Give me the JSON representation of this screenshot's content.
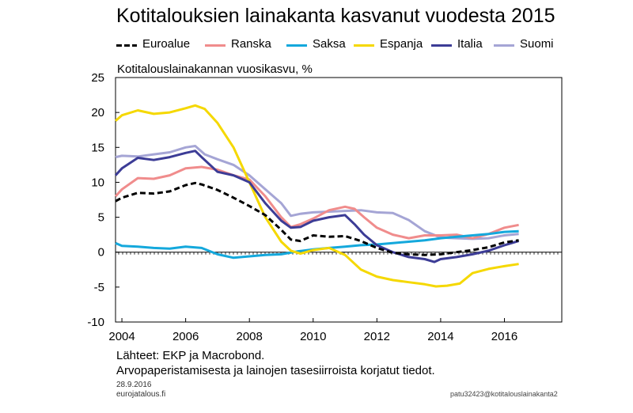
{
  "chart_data": {
    "type": "line",
    "title": "Kotitalouksien lainakanta kasvanut vuodesta 2015",
    "ylabel": "Kotitalouslainakannan vuosikasvu, %",
    "xlabel": "",
    "xlim": [
      2003.8,
      2017.8
    ],
    "ylim": [
      -10,
      25
    ],
    "x_ticks": [
      2004,
      2006,
      2008,
      2010,
      2012,
      2014,
      2016
    ],
    "y_ticks": [
      25,
      20,
      15,
      10,
      5,
      0,
      -5,
      -10
    ],
    "grid": false,
    "series": [
      {
        "name": "Euroalue",
        "color": "#000000",
        "dash": true,
        "x": [
          2003.8,
          2004.0,
          2004.5,
          2005.0,
          2005.5,
          2006.0,
          2006.3,
          2006.5,
          2007.0,
          2007.5,
          2008.0,
          2008.5,
          2009.0,
          2009.3,
          2009.6,
          2010.0,
          2010.5,
          2011.0,
          2011.5,
          2012.0,
          2012.5,
          2013.0,
          2013.5,
          2014.0,
          2014.5,
          2015.0,
          2015.5,
          2016.0,
          2016.45
        ],
        "values": [
          7.3,
          7.8,
          8.5,
          8.4,
          8.7,
          9.6,
          9.9,
          9.7,
          8.9,
          7.8,
          6.6,
          5.3,
          3.2,
          1.8,
          1.6,
          2.4,
          2.2,
          2.3,
          1.6,
          0.6,
          -0.1,
          -0.3,
          -0.4,
          -0.3,
          0.0,
          0.3,
          0.7,
          1.4,
          1.7
        ]
      },
      {
        "name": "Ranska",
        "color": "#F08C8C",
        "dash": false,
        "x": [
          2003.8,
          2004.0,
          2004.5,
          2005.0,
          2005.5,
          2006.0,
          2006.5,
          2007.0,
          2007.5,
          2008.0,
          2008.5,
          2009.0,
          2009.3,
          2009.6,
          2010.0,
          2010.5,
          2011.0,
          2011.3,
          2011.6,
          2012.0,
          2012.5,
          2013.0,
          2013.5,
          2014.0,
          2014.5,
          2015.0,
          2015.5,
          2016.0,
          2016.45
        ],
        "values": [
          8.0,
          9.0,
          10.6,
          10.5,
          11.0,
          12.0,
          12.2,
          11.8,
          11.0,
          10.4,
          8.0,
          5.0,
          3.6,
          4.0,
          4.8,
          6.0,
          6.5,
          6.2,
          5.0,
          3.5,
          2.5,
          2.0,
          2.4,
          2.4,
          2.5,
          2.0,
          2.6,
          3.5,
          3.9
        ]
      },
      {
        "name": "Saksa",
        "color": "#14A8DC",
        "dash": false,
        "x": [
          2003.8,
          2004.0,
          2004.5,
          2005.0,
          2005.5,
          2006.0,
          2006.5,
          2007.0,
          2007.5,
          2008.0,
          2008.5,
          2009.0,
          2009.5,
          2010.0,
          2010.5,
          2011.0,
          2011.5,
          2012.0,
          2012.5,
          2013.0,
          2013.5,
          2014.0,
          2014.5,
          2015.0,
          2015.5,
          2016.0,
          2016.45
        ],
        "values": [
          1.3,
          0.9,
          0.8,
          0.6,
          0.5,
          0.8,
          0.6,
          -0.3,
          -0.8,
          -0.6,
          -0.4,
          -0.3,
          0.1,
          0.4,
          0.6,
          0.8,
          1.0,
          1.1,
          1.3,
          1.5,
          1.7,
          2.0,
          2.2,
          2.4,
          2.6,
          2.9,
          3.0
        ]
      },
      {
        "name": "Espanja",
        "color": "#F5D800",
        "dash": false,
        "x": [
          2003.8,
          2004.0,
          2004.5,
          2005.0,
          2005.5,
          2006.0,
          2006.3,
          2006.6,
          2007.0,
          2007.5,
          2008.0,
          2008.5,
          2009.0,
          2009.3,
          2009.6,
          2010.0,
          2010.5,
          2011.0,
          2011.5,
          2012.0,
          2012.5,
          2013.0,
          2013.5,
          2013.85,
          2014.2,
          2014.6,
          2015.0,
          2015.5,
          2016.0,
          2016.45
        ],
        "values": [
          18.8,
          19.6,
          20.3,
          19.8,
          20.0,
          20.6,
          21.0,
          20.5,
          18.5,
          15.0,
          10.0,
          5.0,
          1.5,
          0.2,
          -0.2,
          0.3,
          0.6,
          -0.4,
          -2.5,
          -3.5,
          -4.0,
          -4.3,
          -4.6,
          -4.9,
          -4.8,
          -4.5,
          -3.0,
          -2.4,
          -2.0,
          -1.7
        ]
      },
      {
        "name": "Italia",
        "color": "#3C3C96",
        "dash": false,
        "x": [
          2003.8,
          2004.0,
          2004.5,
          2005.0,
          2005.5,
          2006.0,
          2006.3,
          2006.5,
          2007.0,
          2007.5,
          2008.0,
          2008.5,
          2009.0,
          2009.3,
          2009.6,
          2010.0,
          2010.5,
          2011.0,
          2011.3,
          2011.6,
          2012.0,
          2012.5,
          2013.0,
          2013.5,
          2013.8,
          2014.0,
          2014.5,
          2015.0,
          2015.5,
          2016.0,
          2016.45
        ],
        "values": [
          11.0,
          12.0,
          13.5,
          13.2,
          13.6,
          14.2,
          14.5,
          13.6,
          11.5,
          11.0,
          10.0,
          7.0,
          4.5,
          3.5,
          3.6,
          4.5,
          5.0,
          5.3,
          4.0,
          2.5,
          1.0,
          0.0,
          -0.7,
          -1.0,
          -1.4,
          -1.0,
          -0.7,
          -0.3,
          0.2,
          1.0,
          1.6
        ]
      },
      {
        "name": "Suomi",
        "color": "#A5A5D5",
        "dash": false,
        "x": [
          2003.8,
          2004.0,
          2004.5,
          2005.0,
          2005.5,
          2006.0,
          2006.3,
          2006.6,
          2007.0,
          2007.5,
          2008.0,
          2008.5,
          2009.0,
          2009.3,
          2009.6,
          2010.0,
          2010.5,
          2011.0,
          2011.5,
          2012.0,
          2012.5,
          2013.0,
          2013.5,
          2014.0,
          2014.5,
          2015.0,
          2015.5,
          2016.0,
          2016.45
        ],
        "values": [
          13.6,
          13.8,
          13.7,
          14.0,
          14.3,
          15.0,
          15.2,
          14.0,
          13.3,
          12.5,
          11.0,
          9.0,
          7.0,
          5.2,
          5.5,
          5.7,
          5.8,
          5.9,
          6.0,
          5.7,
          5.6,
          4.6,
          3.0,
          2.1,
          2.0,
          1.9,
          2.0,
          2.4,
          2.6
        ]
      }
    ]
  },
  "footer": {
    "sources": "Lähteet: EKP ja Macrobond.",
    "note": "Arvopaperistamisesta ja lainojen tasesiirroista korjatut tiedot.",
    "date": "28.9.2016",
    "site": "eurojatalous.fi",
    "code": "patu32423@kotitalouslainakanta2"
  }
}
